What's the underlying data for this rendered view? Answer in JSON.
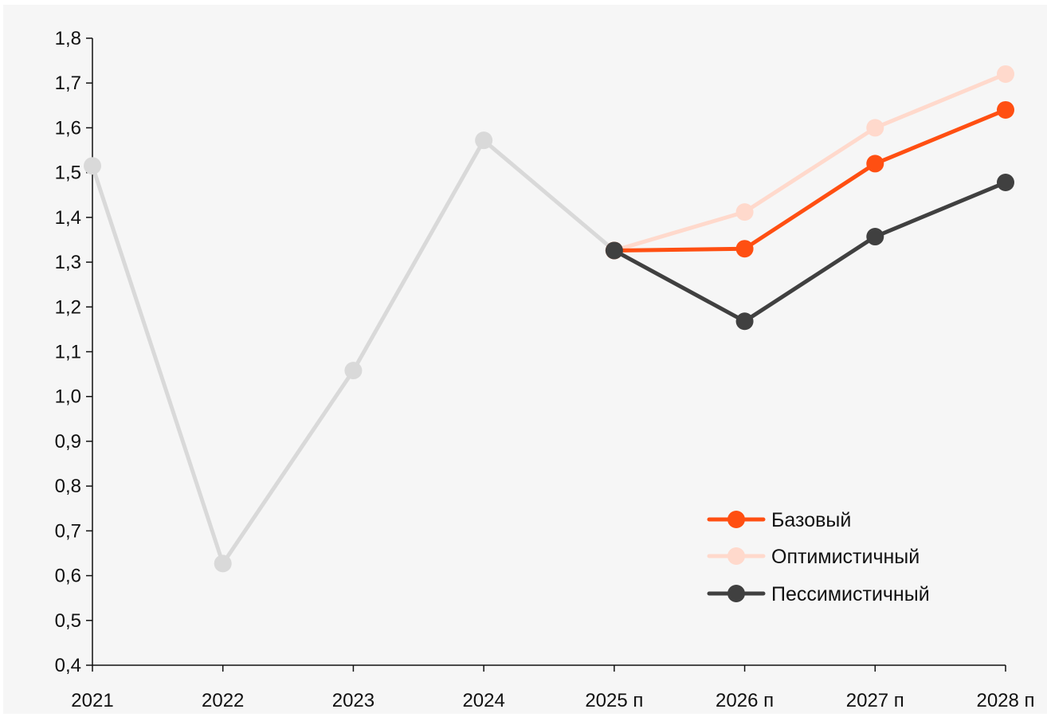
{
  "chart_data": {
    "type": "line",
    "categories": [
      "2021",
      "2022",
      "2023",
      "2024",
      "2025 п",
      "2026 п",
      "2027 п",
      "2028 п"
    ],
    "ylim": [
      0.4,
      1.8
    ],
    "yticks": [
      "0,4",
      "0,5",
      "0,6",
      "0,7",
      "0,8",
      "0,9",
      "1,0",
      "1,1",
      "1,2",
      "1,3",
      "1,4",
      "1,5",
      "1,6",
      "1,7",
      "1,8"
    ],
    "grid": false,
    "legend_position": "bottom-right",
    "series": [
      {
        "name": "",
        "color": "#d9d9d9",
        "values": [
          1.515,
          0.627,
          1.058,
          1.572,
          1.326,
          null,
          null,
          null
        ]
      },
      {
        "name": "Оптимистичный",
        "color": "#ffd9cc",
        "values": [
          null,
          null,
          null,
          null,
          1.326,
          1.412,
          1.6,
          1.72
        ]
      },
      {
        "name": "Базовый",
        "color": "#ff4f12",
        "values": [
          null,
          null,
          null,
          null,
          1.326,
          1.33,
          1.52,
          1.64
        ]
      },
      {
        "name": "Пессимистичный",
        "color": "#404040",
        "values": [
          null,
          null,
          null,
          null,
          1.326,
          1.168,
          1.357,
          1.478
        ]
      }
    ],
    "legend": [
      "Базовый",
      "Оптимистичный",
      "Пессимистичный"
    ]
  }
}
